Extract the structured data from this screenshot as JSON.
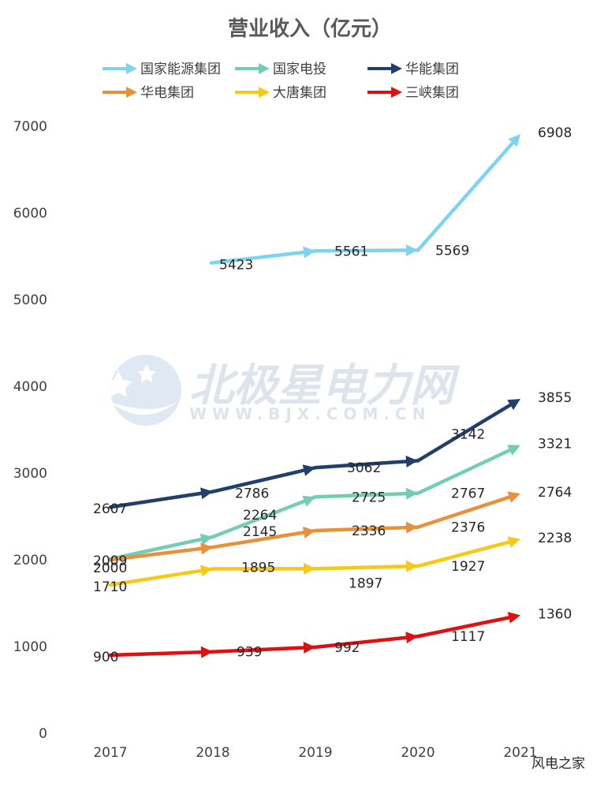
{
  "chart_data": {
    "type": "line",
    "title": "营业收入（亿元）",
    "categories": [
      "2017",
      "2018",
      "2019",
      "2020",
      "2021"
    ],
    "ylim": [
      0,
      7000
    ],
    "yticks": [
      0,
      1000,
      2000,
      3000,
      4000,
      5000,
      6000,
      7000
    ],
    "grid": false,
    "legend_position": "top",
    "series": [
      {
        "name": "国家能源集团",
        "color": "#7dd3f0",
        "values": [
          null,
          5423,
          5561,
          5569,
          6908
        ]
      },
      {
        "name": "国家电投",
        "color": "#73cdb4",
        "values": [
          2009,
          2264,
          2725,
          2767,
          3321
        ]
      },
      {
        "name": "华能集团",
        "color": "#203f6b",
        "values": [
          2607,
          2786,
          3062,
          3142,
          3855
        ]
      },
      {
        "name": "华电集团",
        "color": "#e8913a",
        "values": [
          2000,
          2145,
          2336,
          2376,
          2764
        ]
      },
      {
        "name": "大唐集团",
        "color": "#f6c919",
        "values": [
          1710,
          1895,
          1897,
          1927,
          2238
        ]
      },
      {
        "name": "三峡集团",
        "color": "#e01010",
        "values": [
          900,
          939,
          992,
          1117,
          1360
        ]
      }
    ]
  },
  "watermark": {
    "name": "北极星电力网",
    "url": "WWW.BJX.COM.CN"
  },
  "credit": "风电之家"
}
